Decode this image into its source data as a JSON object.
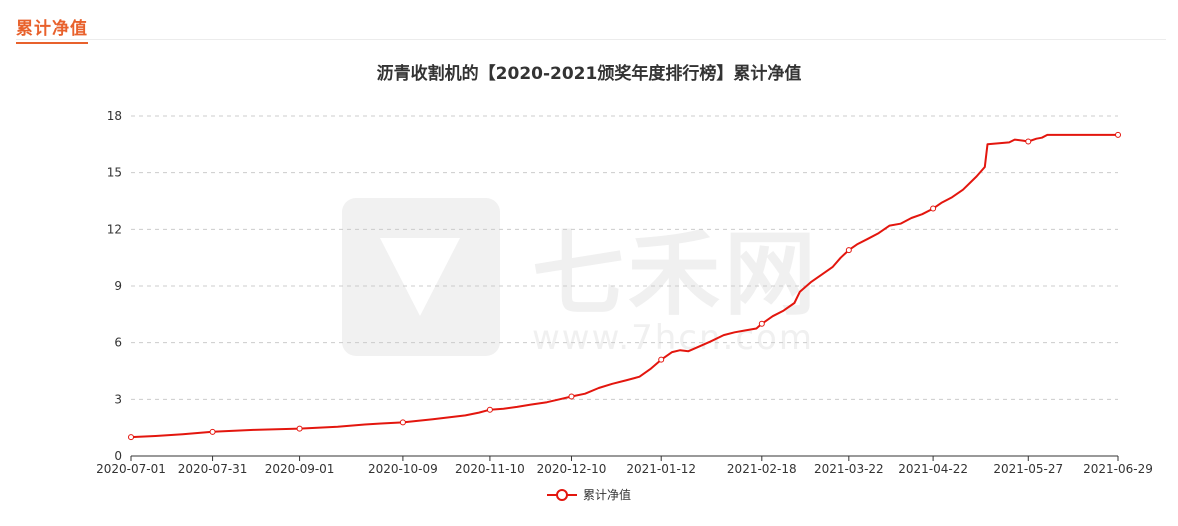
{
  "header": {
    "tab_label": "累计净值"
  },
  "watermark": {
    "brand": "七禾网",
    "url": "www.7hcn.com"
  },
  "chart_data": {
    "type": "line",
    "title": "沥青收割机的【2020-2021颁奖年度排行榜】累计净值",
    "xlabel": "",
    "ylabel": "",
    "ylim": [
      0,
      18
    ],
    "yticks": [
      0,
      3,
      6,
      9,
      12,
      15,
      18
    ],
    "xlim": [
      "2020-07-01",
      "2021-06-29"
    ],
    "xtick_labels": [
      "2020-07-01",
      "2020-07-31",
      "2020-09-01",
      "2020-10-09",
      "2020-11-10",
      "2020-12-10",
      "2021-01-12",
      "2021-02-18",
      "2021-03-22",
      "2021-04-22",
      "2021-05-27",
      "2021-06-29"
    ],
    "grid": true,
    "legend": "bottom-center",
    "colors": {
      "line": "#e3160e"
    },
    "series": [
      {
        "name": "累计净值",
        "x": [
          "2020-07-01",
          "2020-07-10",
          "2020-07-20",
          "2020-07-31",
          "2020-08-15",
          "2020-09-01",
          "2020-09-15",
          "2020-09-25",
          "2020-10-01",
          "2020-10-09",
          "2020-10-20",
          "2020-11-01",
          "2020-11-06",
          "2020-11-10",
          "2020-11-15",
          "2020-11-20",
          "2020-11-25",
          "2020-12-01",
          "2020-12-05",
          "2020-12-10",
          "2020-12-15",
          "2020-12-20",
          "2020-12-25",
          "2020-12-30",
          "2021-01-04",
          "2021-01-08",
          "2021-01-12",
          "2021-01-16",
          "2021-01-19",
          "2021-01-22",
          "2021-01-26",
          "2021-01-30",
          "2021-02-04",
          "2021-02-08",
          "2021-02-12",
          "2021-02-16",
          "2021-02-18",
          "2021-02-22",
          "2021-02-26",
          "2021-03-02",
          "2021-03-04",
          "2021-03-08",
          "2021-03-12",
          "2021-03-16",
          "2021-03-19",
          "2021-03-22",
          "2021-03-25",
          "2021-03-29",
          "2021-04-02",
          "2021-04-06",
          "2021-04-10",
          "2021-04-14",
          "2021-04-18",
          "2021-04-22",
          "2021-04-25",
          "2021-04-29",
          "2021-05-03",
          "2021-05-08",
          "2021-05-11",
          "2021-05-12",
          "2021-05-20",
          "2021-05-22",
          "2021-05-25",
          "2021-05-27",
          "2021-05-30",
          "2021-06-01",
          "2021-06-03",
          "2021-06-06",
          "2021-06-29"
        ],
        "values": [
          1.0,
          1.06,
          1.15,
          1.28,
          1.38,
          1.45,
          1.55,
          1.67,
          1.72,
          1.78,
          1.95,
          2.15,
          2.3,
          2.45,
          2.5,
          2.6,
          2.72,
          2.85,
          2.98,
          3.15,
          3.3,
          3.6,
          3.82,
          4.0,
          4.2,
          4.6,
          5.1,
          5.5,
          5.6,
          5.55,
          5.8,
          6.05,
          6.4,
          6.55,
          6.65,
          6.75,
          7.0,
          7.4,
          7.7,
          8.1,
          8.7,
          9.2,
          9.6,
          10.0,
          10.5,
          10.9,
          11.2,
          11.5,
          11.8,
          12.2,
          12.3,
          12.6,
          12.8,
          13.1,
          13.4,
          13.7,
          14.1,
          14.8,
          15.3,
          16.5,
          16.6,
          16.75,
          16.7,
          16.65,
          16.8,
          16.85,
          17.0,
          17.0,
          17.0
        ]
      }
    ]
  }
}
